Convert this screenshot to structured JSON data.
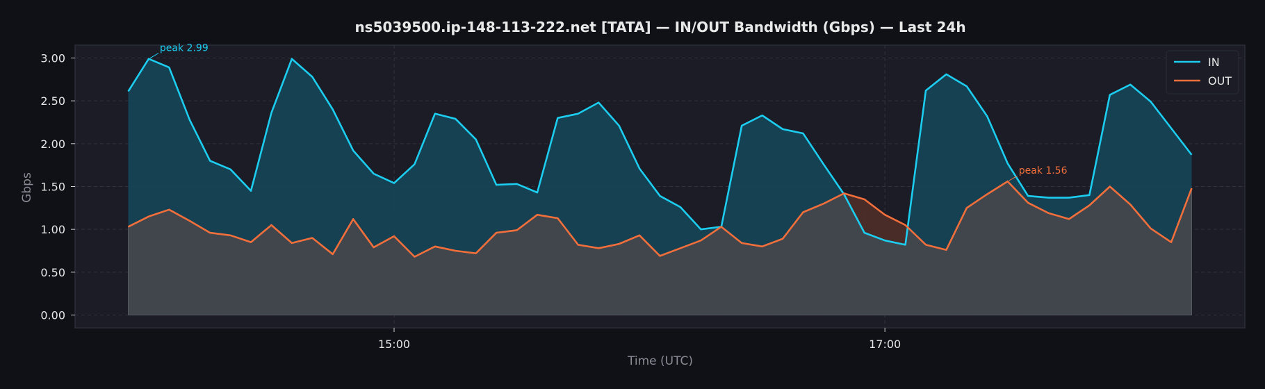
{
  "chart_data": {
    "type": "area",
    "title": "ns5039500.ip-148-113-222.net [TATA] — IN/OUT Bandwidth (Gbps) — Last 24h",
    "xlabel": "Time (UTC)",
    "ylabel": "Gbps",
    "x_unit": "minutes_since_midnight_utc",
    "xlim": [
      822,
      1108
    ],
    "ylim": [
      -0.15,
      3.15
    ],
    "y_ticks": [
      "0.00",
      "0.50",
      "1.00",
      "1.50",
      "2.00",
      "2.50",
      "3.00"
    ],
    "x_ticks": [
      {
        "label": "15:00",
        "value": 900
      },
      {
        "label": "17:00",
        "value": 1020
      }
    ],
    "x_start": 835,
    "x_step": 5,
    "grid": true,
    "legend_position": "top-right",
    "colors": {
      "background": "#101116",
      "plot_background": "#1b1c26",
      "in": "#1ccdf0",
      "out": "#f26f3b",
      "in_fill": "#14485a",
      "out_fill": "#44474d",
      "out_over_in_fill": "#4a2a26"
    },
    "series": [
      {
        "name": "IN",
        "values": [
          2.61,
          2.99,
          2.89,
          2.28,
          1.8,
          1.7,
          1.45,
          2.36,
          2.99,
          2.78,
          2.4,
          1.92,
          1.65,
          1.54,
          1.76,
          2.35,
          2.29,
          2.05,
          1.52,
          1.53,
          1.43,
          2.3,
          2.35,
          2.48,
          2.21,
          1.71,
          1.39,
          1.26,
          1.0,
          1.03,
          2.21,
          2.33,
          2.17,
          2.12,
          1.76,
          1.41,
          0.96,
          0.87,
          0.82,
          2.62,
          2.81,
          2.67,
          2.32,
          1.77,
          1.39,
          1.37,
          1.37,
          1.4,
          2.57,
          2.69,
          2.49,
          2.18,
          1.87
        ]
      },
      {
        "name": "OUT",
        "values": [
          1.03,
          1.15,
          1.23,
          1.1,
          0.96,
          0.93,
          0.85,
          1.05,
          0.84,
          0.9,
          0.71,
          1.12,
          0.79,
          0.92,
          0.68,
          0.8,
          0.75,
          0.72,
          0.96,
          0.99,
          1.17,
          1.13,
          0.82,
          0.78,
          0.83,
          0.93,
          0.69,
          0.78,
          0.87,
          1.03,
          0.84,
          0.8,
          0.89,
          1.2,
          1.3,
          1.42,
          1.35,
          1.17,
          1.05,
          0.82,
          0.76,
          1.25,
          1.41,
          1.56,
          1.31,
          1.19,
          1.12,
          1.28,
          1.5,
          1.29,
          1.01,
          0.85,
          1.48
        ]
      }
    ],
    "annotations": [
      {
        "text": "peak 2.99",
        "series": "IN",
        "index": 1
      },
      {
        "text": "peak 1.56",
        "series": "OUT",
        "index": 43
      }
    ]
  }
}
